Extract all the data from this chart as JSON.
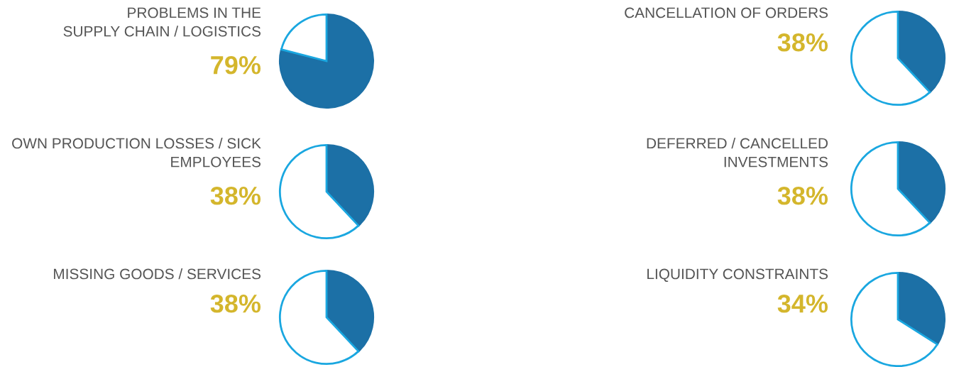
{
  "chart_data": [
    {
      "type": "pie",
      "title": "PROBLEMS IN THE\nSUPPLY CHAIN / LOGISTICS",
      "categories": [
        null,
        null
      ],
      "values": [
        79,
        21
      ],
      "colors": [
        "#1c70a6",
        "#1aa7e0"
      ],
      "annotations": [
        "79%"
      ]
    },
    {
      "type": "pie",
      "title": "CANCELLATION OF ORDERS",
      "categories": [
        null,
        null
      ],
      "values": [
        38,
        62
      ],
      "colors": [
        "#1c70a6",
        "#1aa7e0"
      ],
      "annotations": [
        "38%"
      ]
    },
    {
      "type": "pie",
      "title": "OWN PRODUCTION LOSSES / SICK\nEMPLOYEES",
      "categories": [
        null,
        null
      ],
      "values": [
        38,
        62
      ],
      "colors": [
        "#1c70a6",
        "#1aa7e0"
      ],
      "annotations": [
        "38%"
      ]
    },
    {
      "type": "pie",
      "title": "DEFERRED / CANCELLED\nINVESTMENTS",
      "categories": [
        null,
        null
      ],
      "values": [
        38,
        62
      ],
      "colors": [
        "#1c70a6",
        "#1aa7e0"
      ],
      "annotations": [
        "38%"
      ]
    },
    {
      "type": "pie",
      "title": "MISSING GOODS / SERVICES",
      "categories": [
        null,
        null
      ],
      "values": [
        38,
        62
      ],
      "colors": [
        "#1c70a6",
        "#1aa7e0"
      ],
      "annotations": [
        "38%"
      ]
    },
    {
      "type": "pie",
      "title": "LIQUIDITY CONSTRAINTS",
      "categories": [
        null,
        null
      ],
      "values": [
        34,
        66
      ],
      "colors": [
        "#1c70a6",
        "#1aa7e0"
      ],
      "annotations": [
        "34%"
      ]
    }
  ]
}
